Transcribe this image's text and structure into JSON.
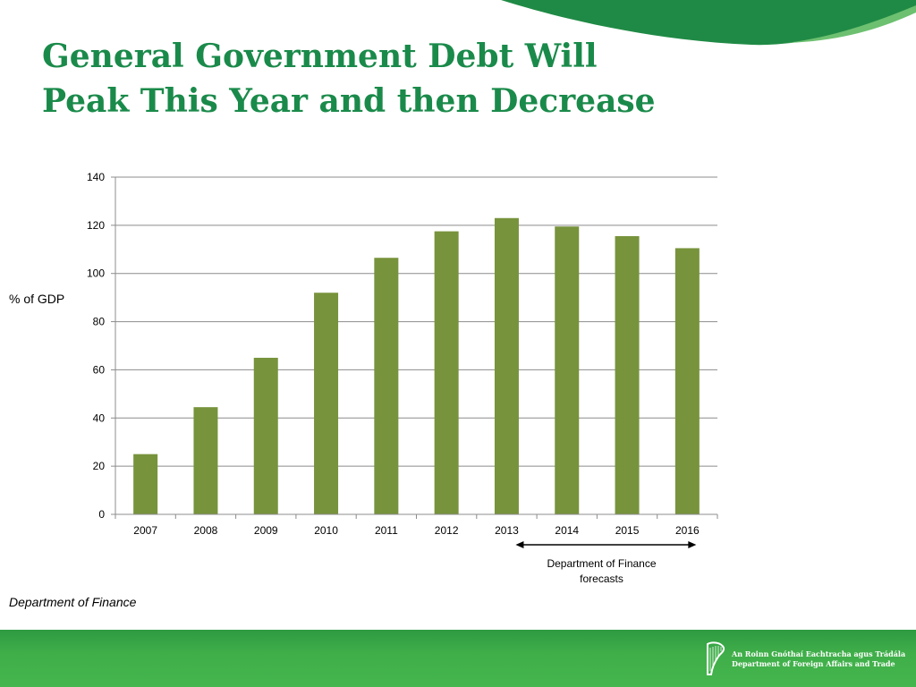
{
  "slide": {
    "title_line1": "General Government Debt Will",
    "title_line2": "Peak This Year and then Decrease",
    "source": "Department of Finance",
    "forecast_note_line1": "Department of Finance",
    "forecast_note_line2": "forecasts",
    "footer_irish": "An Roinn Gnóthaí Eachtracha agus Trádála",
    "footer_english": "Department of Foreign Affairs and Trade"
  },
  "colors": {
    "title": "#1a8a4a",
    "bar": "#77933c",
    "gridline": "#8c8c8c",
    "footer": "#3fae49"
  },
  "icons": [
    "harp-icon",
    "double-arrow-icon"
  ],
  "chart_data": {
    "type": "bar",
    "title": "",
    "xlabel": "",
    "ylabel": "% of GDP",
    "categories": [
      "2007",
      "2008",
      "2009",
      "2010",
      "2011",
      "2012",
      "2013",
      "2014",
      "2015",
      "2016"
    ],
    "values": [
      25,
      44.5,
      65,
      92,
      106.5,
      117.5,
      123,
      119.5,
      115.5,
      110.5
    ],
    "ylim": [
      0,
      140
    ],
    "yticks": [
      0,
      20,
      40,
      60,
      80,
      100,
      120,
      140
    ],
    "grid": true,
    "legend": "none",
    "forecast_range": [
      "2013",
      "2016"
    ]
  }
}
